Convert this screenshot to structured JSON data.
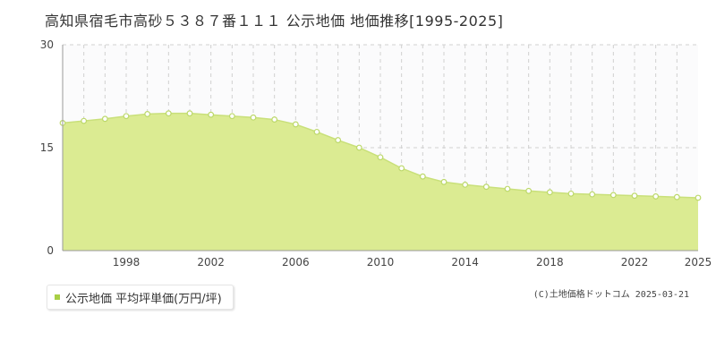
{
  "title": "高知県宿毛市高砂５３８７番１１１ 公示地価 地価推移[1995-2025]",
  "legend": {
    "label": "公示地価 平均坪単価(万円/坪)"
  },
  "copyright": "(C)土地価格ドットコム 2025-03-21",
  "colors": {
    "fill": "#dbeb92",
    "line": "#c9e07a",
    "marker_stroke": "#bcd86a",
    "legend": "#a8cf45"
  },
  "chart_data": {
    "type": "area",
    "title": "高知県宿毛市高砂５３８７番１１１ 公示地価 地価推移[1995-2025]",
    "xlabel": "",
    "ylabel": "",
    "xlim": [
      1995,
      2025
    ],
    "ylim": [
      0,
      30
    ],
    "yticks": [
      0,
      15,
      30
    ],
    "xticks": [
      1998,
      2002,
      2006,
      2010,
      2014,
      2018,
      2022,
      2025
    ],
    "grid": true,
    "legend_position": "bottom-left",
    "series": [
      {
        "name": "公示地価 平均坪単価(万円/坪)",
        "x": [
          1995,
          1996,
          1997,
          1998,
          1999,
          2000,
          2001,
          2002,
          2003,
          2004,
          2005,
          2006,
          2007,
          2008,
          2009,
          2010,
          2011,
          2012,
          2013,
          2014,
          2015,
          2016,
          2017,
          2018,
          2019,
          2020,
          2021,
          2022,
          2023,
          2024,
          2025
        ],
        "values": [
          18.6,
          18.9,
          19.2,
          19.6,
          19.9,
          20.0,
          20.0,
          19.8,
          19.6,
          19.4,
          19.1,
          18.4,
          17.3,
          16.1,
          15.0,
          13.6,
          12.0,
          10.8,
          10.0,
          9.6,
          9.3,
          9.0,
          8.7,
          8.5,
          8.3,
          8.2,
          8.1,
          8.0,
          7.9,
          7.8,
          7.7
        ]
      }
    ]
  }
}
